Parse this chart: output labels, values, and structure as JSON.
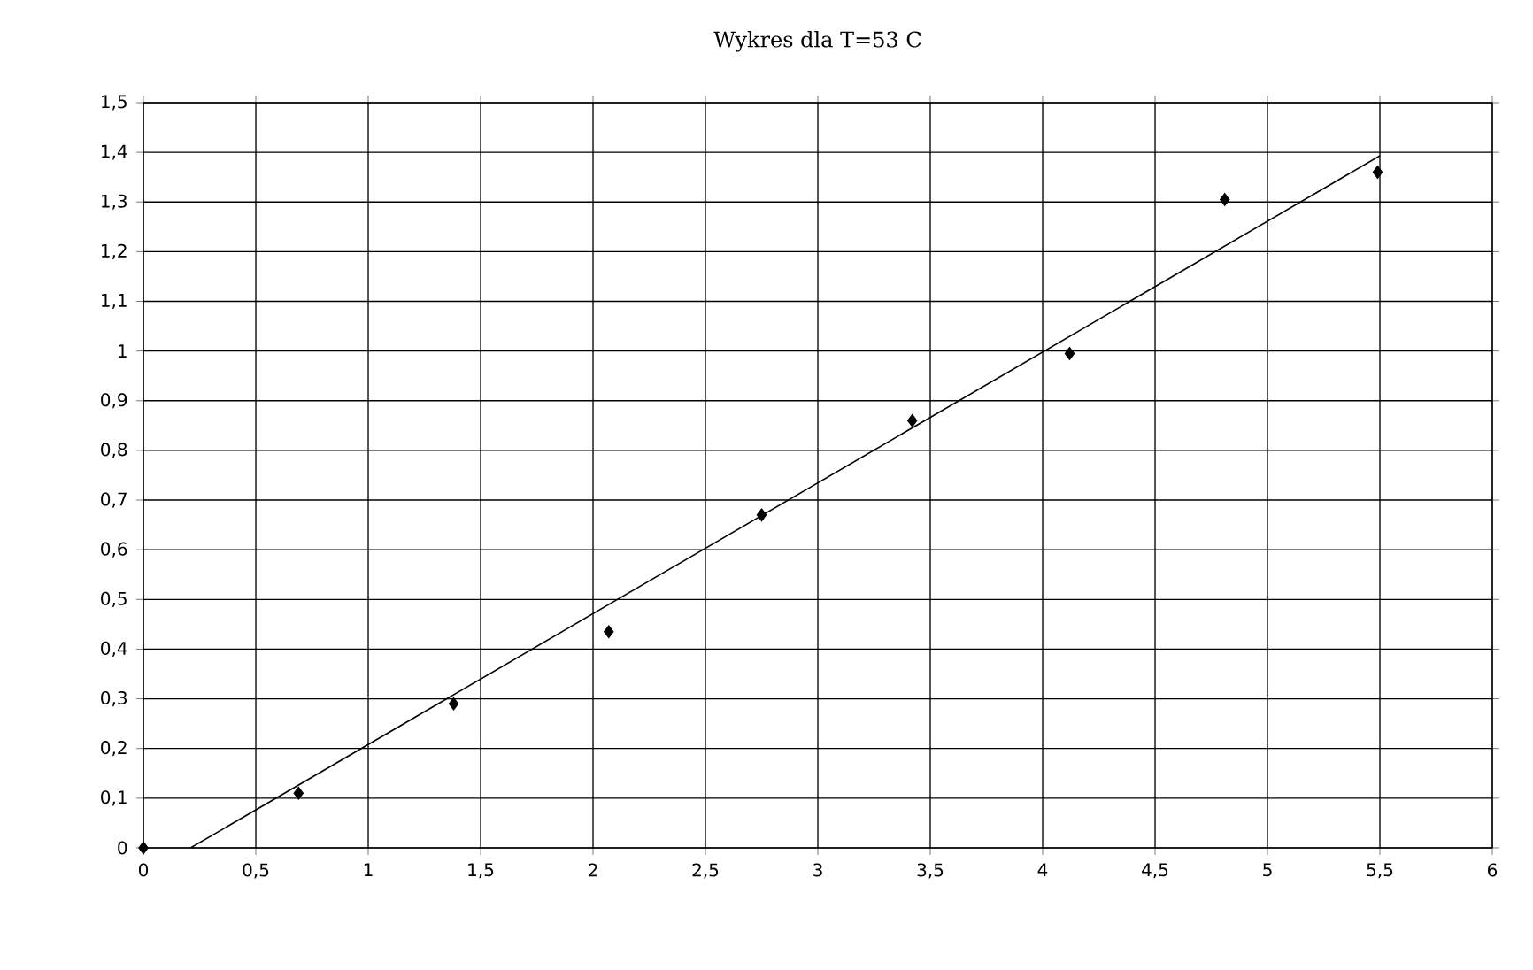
{
  "chart_data": {
    "type": "scatter",
    "title": "Wykres dla T=53 C",
    "series": [
      {
        "color": "#000000",
        "marker": "diamond",
        "x": [
          0,
          0.69,
          1.38,
          2.07,
          2.75,
          3.42,
          4.12,
          4.81,
          5.49
        ],
        "values": [
          0,
          0.11,
          0.29,
          0.435,
          0.67,
          0.86,
          0.995,
          1.305,
          1.36
        ]
      },
      {
        "type": "line",
        "color": "#000000",
        "marker": "none",
        "line_style": "solid",
        "x": [
          0.21,
          5.5
        ],
        "values": [
          0,
          1.393
        ]
      }
    ],
    "xlim": [
      0,
      6
    ],
    "ylim": [
      0,
      1.5
    ],
    "xticks": [
      0,
      {
        "value": 0.5,
        "label": "0,5"
      },
      1,
      {
        "value": 1.5,
        "label": "1,5"
      },
      2,
      {
        "value": 2.5,
        "label": "2,5"
      },
      3,
      {
        "value": 3.5,
        "label": "3,5"
      },
      4,
      {
        "value": 4.5,
        "label": "4,5"
      },
      5,
      {
        "value": 5.5,
        "label": "5,5"
      },
      6
    ],
    "yticks": [
      0,
      {
        "value": 0.1,
        "label": "0,1"
      },
      {
        "value": 0.2,
        "label": "0,2"
      },
      {
        "value": 0.3,
        "label": "0,3"
      },
      {
        "value": 0.4,
        "label": "0,4"
      },
      {
        "value": 0.5,
        "label": "0,5"
      },
      {
        "value": 0.6,
        "label": "0,6"
      },
      {
        "value": 0.7,
        "label": "0,7"
      },
      {
        "value": 0.8,
        "label": "0,8"
      },
      {
        "value": 0.9,
        "label": "0,9"
      },
      1,
      {
        "value": 1.1,
        "label": "1,1"
      },
      {
        "value": 1.2,
        "label": "1,2"
      },
      {
        "value": 1.3,
        "label": "1,3"
      },
      {
        "value": 1.4,
        "label": "1,4"
      },
      {
        "value": 1.5,
        "label": "1,5"
      }
    ],
    "grid": true
  }
}
